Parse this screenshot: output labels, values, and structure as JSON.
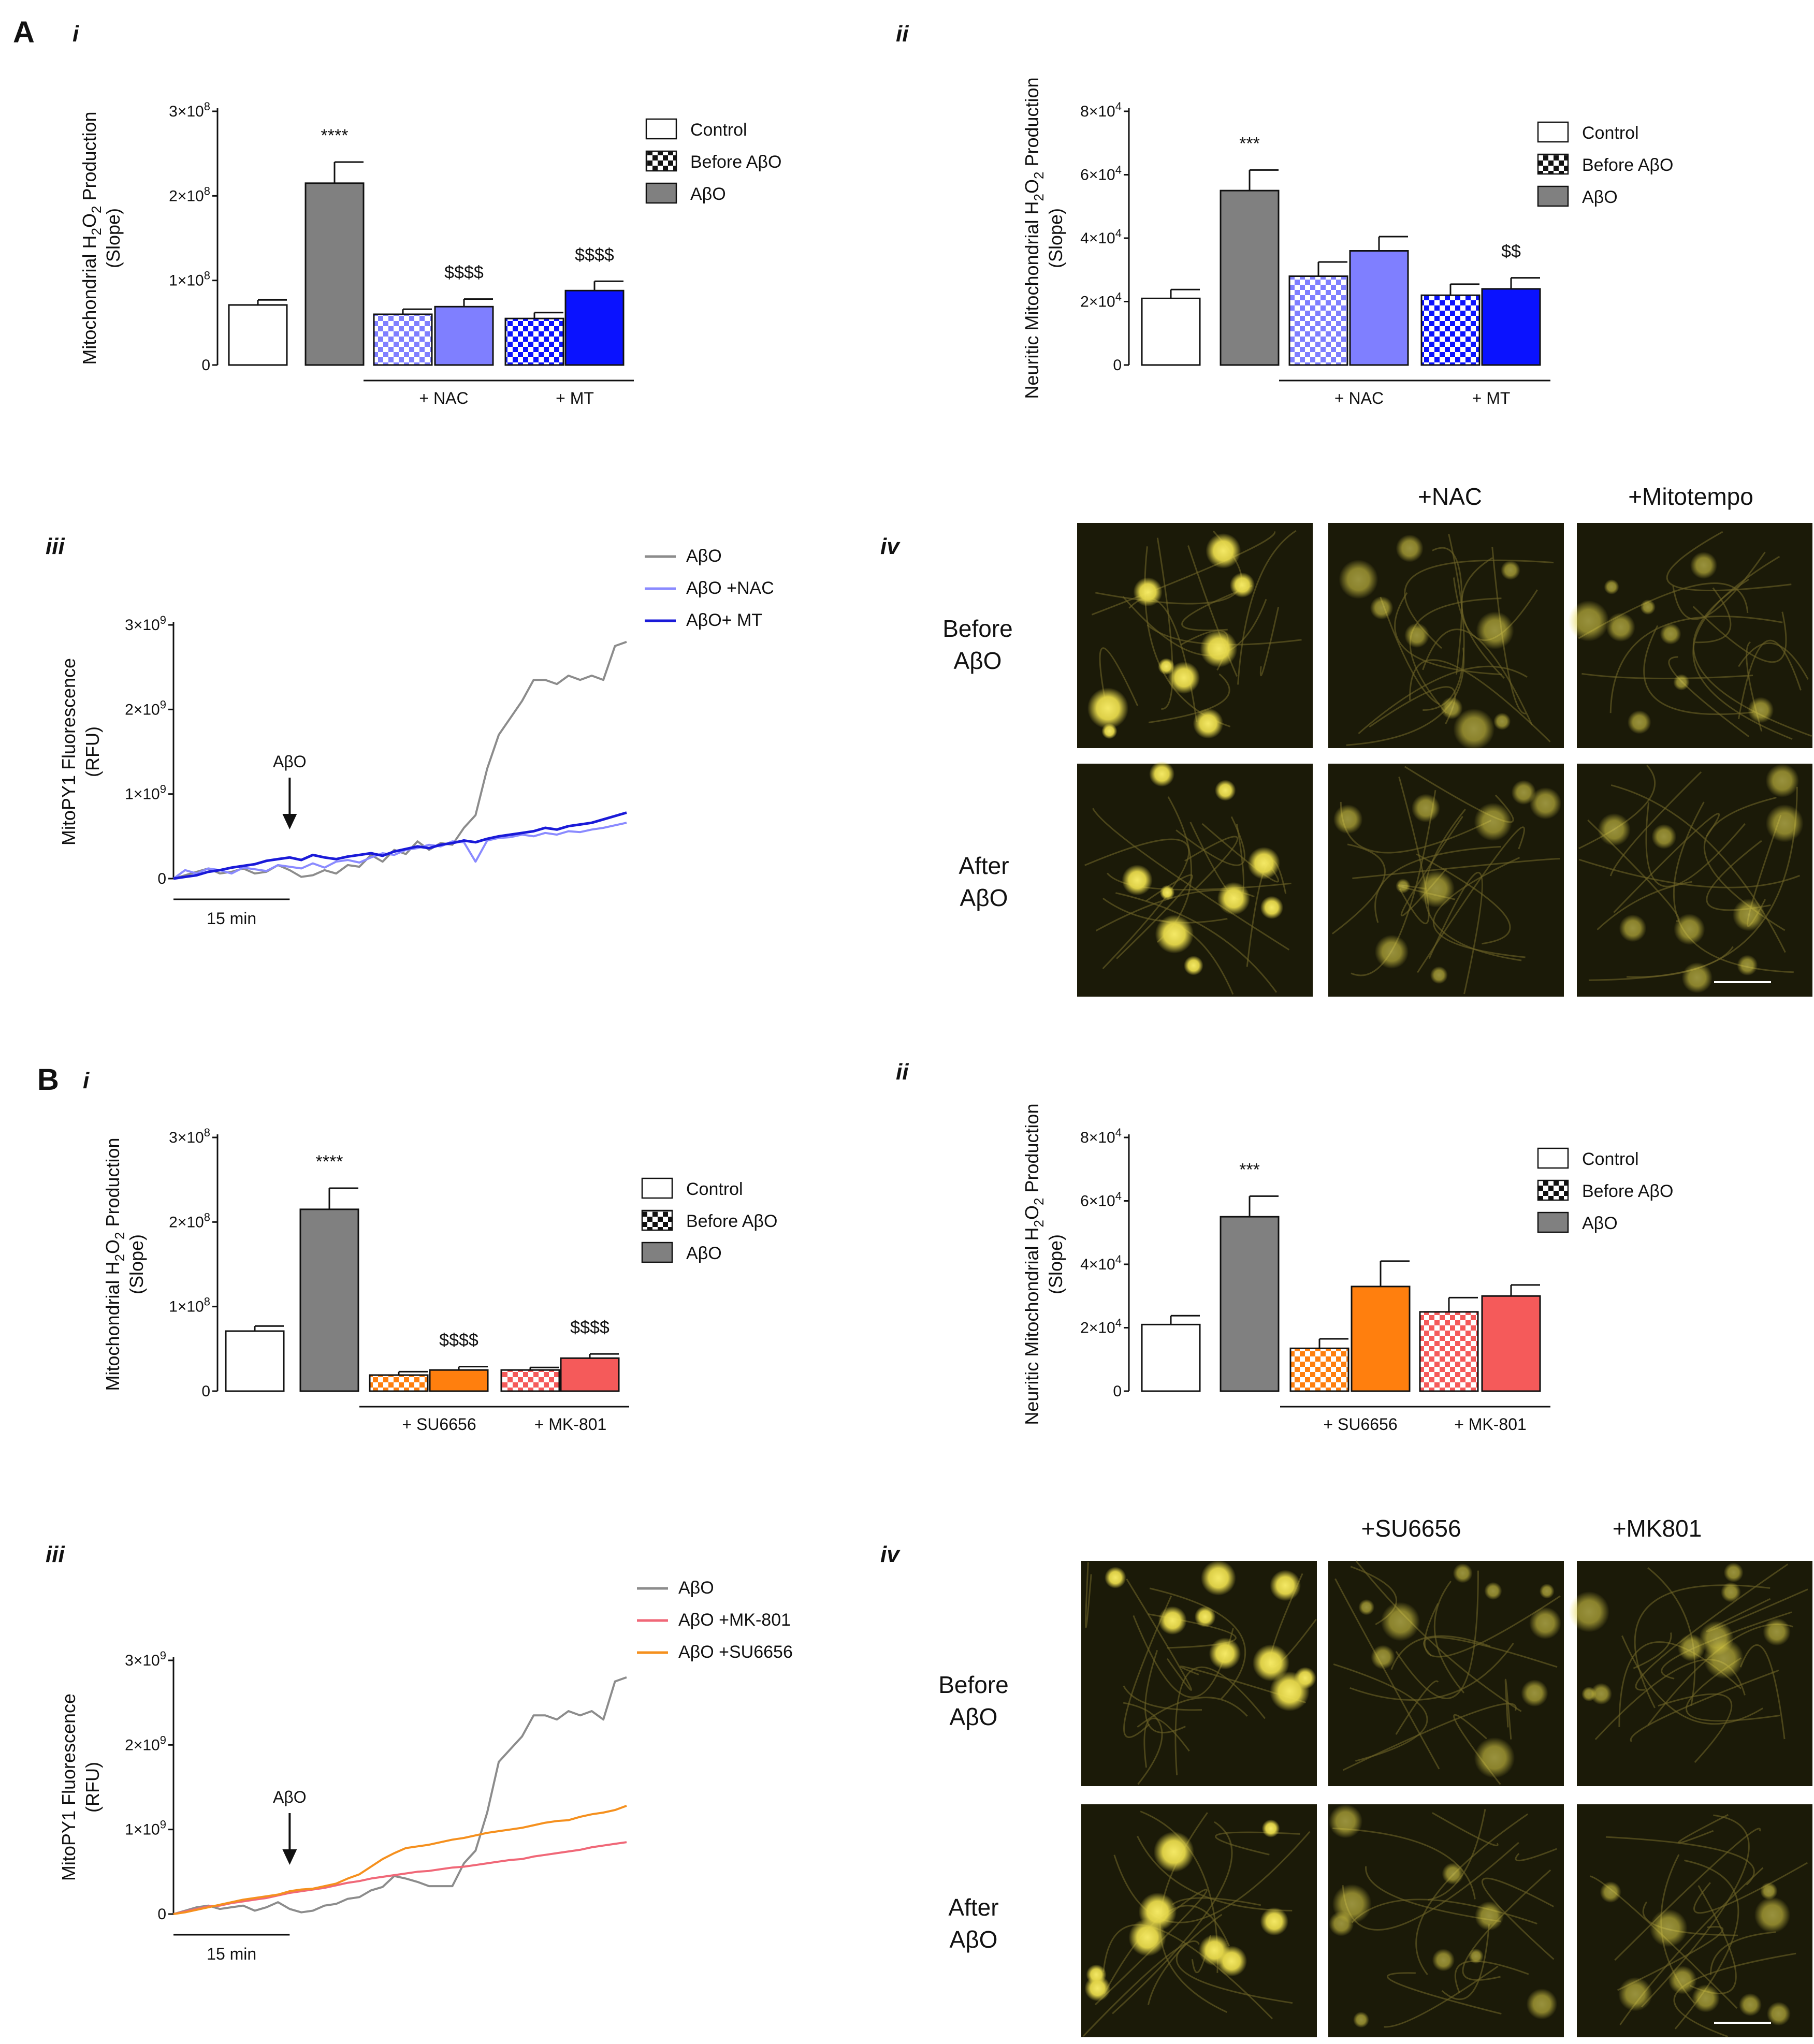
{
  "colors": {
    "control": "#ffffff",
    "abo": "#808080",
    "nac": "#7f7fff",
    "mt": "#0a12ff",
    "su": "#ff7f0e",
    "mk": "#f55a5a",
    "trace_abo": "#8c8c8c",
    "trace_nac": "#8a8aff",
    "trace_mt": "#1a1ad8",
    "trace_mk": "#f06878",
    "trace_su": "#f5901e",
    "micro_bg": "#1b1a08",
    "micro_cell": "#e6d84a"
  },
  "panel_letters": [
    "A",
    "B"
  ],
  "romans": [
    "i",
    "ii",
    "iii",
    "iv"
  ],
  "chart_data": [
    {
      "id": "Ai",
      "type": "bar",
      "ylabel": "Mitochondrial H2O2 Production (Slope)",
      "ylim": [
        0,
        300000000
      ],
      "yticks": [
        {
          "v": 0,
          "b": "0"
        },
        {
          "v": 100000000,
          "b": "1×10",
          "e": "8"
        },
        {
          "v": 200000000,
          "b": "2×10",
          "e": "8"
        },
        {
          "v": 300000000,
          "b": "3×10",
          "e": "8"
        }
      ],
      "bars": [
        {
          "label": "Control",
          "value": 71000000,
          "err": 6000000,
          "color": "control",
          "pattern": false
        },
        {
          "label": "AβO",
          "value": 215000000,
          "err": 25000000,
          "color": "abo",
          "pattern": false
        },
        {
          "label": "Before AβO + NAC",
          "value": 60000000,
          "err": 6000000,
          "color": "nac",
          "pattern": true
        },
        {
          "label": "AβO + NAC",
          "value": 69000000,
          "err": 9000000,
          "color": "nac",
          "pattern": false
        },
        {
          "label": "Before AβO + MT",
          "value": 55000000,
          "err": 7000000,
          "color": "mt",
          "pattern": true
        },
        {
          "label": "AβO + MT",
          "value": 88000000,
          "err": 11000000,
          "color": "mt",
          "pattern": false
        }
      ],
      "annotations": [
        {
          "bar": 1,
          "text": "****"
        },
        {
          "bar": 3,
          "text": "$$$$"
        },
        {
          "bar": 5,
          "text": "$$$$"
        }
      ],
      "groups": [
        {
          "from": 2,
          "to": 3,
          "label": "+ NAC"
        },
        {
          "from": 4,
          "to": 5,
          "label": "+ MT"
        }
      ],
      "legend": [
        "Control",
        "Before AβO",
        "AβO"
      ]
    },
    {
      "id": "Aii",
      "type": "bar",
      "ylabel": "Neuritic Mitochondrial H2O2 Production (Slope)",
      "ylim": [
        0,
        80000
      ],
      "yticks": [
        {
          "v": 0,
          "b": "0"
        },
        {
          "v": 20000,
          "b": "2×10",
          "e": "4"
        },
        {
          "v": 40000,
          "b": "4×10",
          "e": "4"
        },
        {
          "v": 60000,
          "b": "6×10",
          "e": "4"
        },
        {
          "v": 80000,
          "b": "8×10",
          "e": "4"
        }
      ],
      "bars": [
        {
          "label": "Control",
          "value": 21000,
          "err": 2800,
          "color": "control",
          "pattern": false
        },
        {
          "label": "AβO",
          "value": 55000,
          "err": 6500,
          "color": "abo",
          "pattern": false
        },
        {
          "label": "Before AβO + NAC",
          "value": 28000,
          "err": 4500,
          "color": "nac",
          "pattern": true
        },
        {
          "label": "AβO + NAC",
          "value": 36000,
          "err": 4500,
          "color": "nac",
          "pattern": false
        },
        {
          "label": "Before AβO + MT",
          "value": 22000,
          "err": 3500,
          "color": "mt",
          "pattern": true
        },
        {
          "label": "AβO + MT",
          "value": 24000,
          "err": 3500,
          "color": "mt",
          "pattern": false
        }
      ],
      "annotations": [
        {
          "bar": 1,
          "text": "***"
        },
        {
          "bar": 5,
          "text": "$$"
        }
      ],
      "groups": [
        {
          "from": 2,
          "to": 3,
          "label": "+ NAC"
        },
        {
          "from": 4,
          "to": 5,
          "label": "+ MT"
        }
      ],
      "legend": [
        "Control",
        "Before AβO",
        "AβO"
      ]
    },
    {
      "id": "Aiii",
      "type": "line",
      "ylabel": "MitoPY1 Fluorescence (RFU)",
      "ylim": [
        0,
        3000000000
      ],
      "yticks": [
        {
          "v": 0,
          "b": "0"
        },
        {
          "v": 1000000000,
          "b": "1×10",
          "e": "9"
        },
        {
          "v": 2000000000,
          "b": "2×10",
          "e": "9"
        },
        {
          "v": 3000000000,
          "b": "3×10",
          "e": "9"
        }
      ],
      "xlim": [
        0,
        39
      ],
      "scale_label": "15 min",
      "arrow": {
        "x": 10,
        "label": "AβO"
      },
      "series": [
        {
          "name": "AβO",
          "color": "trace_abo",
          "values": [
            0,
            40,
            80,
            120,
            60,
            80,
            120,
            60,
            80,
            160,
            100,
            20,
            40,
            100,
            60,
            160,
            140,
            280,
            200,
            340,
            290,
            440,
            340,
            420,
            400,
            600,
            750,
            1300,
            1700,
            1900,
            2100,
            2350,
            2350,
            2300,
            2400,
            2350,
            2400,
            2350,
            2750,
            2800
          ]
        },
        {
          "name": "AβO +NAC",
          "color": "trace_nac",
          "values": [
            0,
            100,
            60,
            120,
            100,
            60,
            130,
            110,
            90,
            160,
            140,
            120,
            180,
            130,
            200,
            220,
            190,
            250,
            300,
            280,
            340,
            360,
            400,
            380,
            440,
            430,
            200,
            450,
            480,
            490,
            520,
            500,
            540,
            520,
            560,
            550,
            580,
            600,
            630,
            660
          ]
        },
        {
          "name": "AβO+ MT",
          "color": "trace_mt",
          "values": [
            0,
            20,
            40,
            80,
            100,
            130,
            150,
            170,
            210,
            230,
            250,
            220,
            280,
            250,
            230,
            260,
            280,
            300,
            270,
            320,
            350,
            380,
            360,
            400,
            420,
            450,
            430,
            470,
            500,
            520,
            540,
            560,
            600,
            580,
            620,
            640,
            660,
            700,
            740,
            780
          ]
        }
      ],
      "legend": [
        "AβO",
        "AβO +NAC",
        "AβO+ MT"
      ]
    },
    {
      "id": "Bi",
      "type": "bar",
      "ylabel": "Mitochondrial H2O2 Production (Slope)",
      "ylim": [
        0,
        300000000
      ],
      "yticks": [
        {
          "v": 0,
          "b": "0"
        },
        {
          "v": 100000000,
          "b": "1×10",
          "e": "8"
        },
        {
          "v": 200000000,
          "b": "2×10",
          "e": "8"
        },
        {
          "v": 300000000,
          "b": "3×10",
          "e": "8"
        }
      ],
      "bars": [
        {
          "label": "Control",
          "value": 71000000,
          "err": 6000000,
          "color": "control",
          "pattern": false
        },
        {
          "label": "AβO",
          "value": 215000000,
          "err": 25000000,
          "color": "abo",
          "pattern": false
        },
        {
          "label": "Before AβO + SU6656",
          "value": 19000000,
          "err": 4000000,
          "color": "su",
          "pattern": true
        },
        {
          "label": "AβO + SU6656",
          "value": 25000000,
          "err": 4000000,
          "color": "su",
          "pattern": false
        },
        {
          "label": "Before AβO + MK-801",
          "value": 25000000,
          "err": 3000000,
          "color": "mk",
          "pattern": true
        },
        {
          "label": "AβO + MK-801",
          "value": 39000000,
          "err": 5000000,
          "color": "mk",
          "pattern": false
        }
      ],
      "annotations": [
        {
          "bar": 1,
          "text": "****"
        },
        {
          "bar": 3,
          "text": "$$$$"
        },
        {
          "bar": 5,
          "text": "$$$$"
        }
      ],
      "groups": [
        {
          "from": 2,
          "to": 3,
          "label": "+ SU6656"
        },
        {
          "from": 4,
          "to": 5,
          "label": "+ MK-801"
        }
      ],
      "legend": [
        "Control",
        "Before AβO",
        "AβO"
      ]
    },
    {
      "id": "Bii",
      "type": "bar",
      "ylabel": "Neuritic Mitochondrial H2O2 Production (Slope)",
      "ylim": [
        0,
        80000
      ],
      "yticks": [
        {
          "v": 0,
          "b": "0"
        },
        {
          "v": 20000,
          "b": "2×10",
          "e": "4"
        },
        {
          "v": 40000,
          "b": "4×10",
          "e": "4"
        },
        {
          "v": 60000,
          "b": "6×10",
          "e": "4"
        },
        {
          "v": 80000,
          "b": "8×10",
          "e": "4"
        }
      ],
      "bars": [
        {
          "label": "Control",
          "value": 21000,
          "err": 2800,
          "color": "control",
          "pattern": false
        },
        {
          "label": "AβO",
          "value": 55000,
          "err": 6500,
          "color": "abo",
          "pattern": false
        },
        {
          "label": "Before AβO + SU6656",
          "value": 13500,
          "err": 3000,
          "color": "su",
          "pattern": true
        },
        {
          "label": "AβO + SU6656",
          "value": 33000,
          "err": 8000,
          "color": "su",
          "pattern": false
        },
        {
          "label": "Before AβO + MK-801",
          "value": 25000,
          "err": 4500,
          "color": "mk",
          "pattern": true
        },
        {
          "label": "AβO + MK-801",
          "value": 30000,
          "err": 3500,
          "color": "mk",
          "pattern": false
        }
      ],
      "annotations": [
        {
          "bar": 1,
          "text": "***"
        }
      ],
      "groups": [
        {
          "from": 2,
          "to": 3,
          "label": "+ SU6656"
        },
        {
          "from": 4,
          "to": 5,
          "label": "+ MK-801"
        }
      ],
      "legend": [
        "Control",
        "Before AβO",
        "AβO"
      ]
    },
    {
      "id": "Biii",
      "type": "line",
      "ylabel": "MitoPY1 Fluorescence (RFU)",
      "ylim": [
        0,
        3000000000
      ],
      "yticks": [
        {
          "v": 0,
          "b": "0"
        },
        {
          "v": 1000000000,
          "b": "1×10",
          "e": "9"
        },
        {
          "v": 2000000000,
          "b": "2×10",
          "e": "9"
        },
        {
          "v": 3000000000,
          "b": "3×10",
          "e": "9"
        }
      ],
      "xlim": [
        0,
        39
      ],
      "scale_label": "15 min",
      "arrow": {
        "x": 10,
        "label": "AβO"
      },
      "series": [
        {
          "name": "AβO",
          "color": "trace_abo",
          "values": [
            0,
            40,
            80,
            100,
            60,
            80,
            100,
            40,
            80,
            140,
            60,
            20,
            40,
            100,
            120,
            180,
            200,
            280,
            320,
            450,
            420,
            380,
            330,
            330,
            330,
            600,
            750,
            1200,
            1800,
            1950,
            2100,
            2350,
            2350,
            2300,
            2400,
            2350,
            2400,
            2300,
            2750,
            2800
          ]
        },
        {
          "name": "AβO +MK-801",
          "color": "trace_mk",
          "values": [
            0,
            30,
            60,
            90,
            100,
            130,
            150,
            170,
            190,
            220,
            250,
            270,
            290,
            310,
            340,
            370,
            390,
            420,
            440,
            460,
            480,
            500,
            510,
            530,
            550,
            560,
            580,
            600,
            620,
            640,
            650,
            680,
            700,
            720,
            740,
            760,
            790,
            810,
            830,
            850
          ]
        },
        {
          "name": "AβO +SU6656",
          "color": "trace_su",
          "values": [
            0,
            20,
            50,
            80,
            110,
            140,
            170,
            190,
            210,
            230,
            270,
            290,
            300,
            330,
            360,
            420,
            470,
            560,
            650,
            720,
            780,
            800,
            820,
            850,
            880,
            900,
            930,
            960,
            980,
            1000,
            1020,
            1050,
            1080,
            1100,
            1110,
            1150,
            1180,
            1200,
            1230,
            1280
          ]
        }
      ],
      "legend": [
        "AβO",
        "AβO +MK-801",
        "AβO +SU6656"
      ]
    }
  ],
  "micrographs": {
    "A": {
      "columns": [
        "",
        "+NAC",
        "+Mitotempo"
      ],
      "rows": [
        [
          "Before",
          "AβO"
        ],
        [
          "After",
          "AβO"
        ]
      ]
    },
    "B": {
      "columns": [
        "",
        "+SU6656",
        "+MK801"
      ],
      "rows": [
        [
          "Before",
          "AβO"
        ],
        [
          "After",
          "AβO"
        ]
      ]
    }
  }
}
